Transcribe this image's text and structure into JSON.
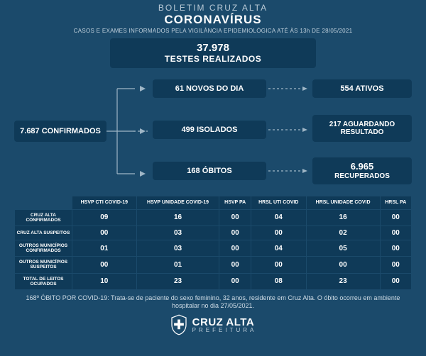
{
  "header": {
    "line1": "BOLETIM CRUZ ALTA",
    "line2": "CORONAVÍRUS",
    "subtitle": "CASOS E EXAMES INFORMADOS PELA VIGILÂNCIA EPIDEMIOLÓGICA ATÉ ÀS 13h DE 28/05/2021"
  },
  "tests": {
    "value": "37.978",
    "label": "TESTES REALIZADOS"
  },
  "flow": {
    "confirmed": "7.687 CONFIRMADOS",
    "new_day": "61 NOVOS DO DIA",
    "isolated": "499 ISOLADOS",
    "deaths": "168 ÓBITOS",
    "active": "554 ATIVOS",
    "awaiting": "217 AGUARDANDO RESULTADO",
    "recovered_num": "6.965",
    "recovered_lbl": "RECUPERADOS"
  },
  "table": {
    "columns": [
      "HSVP CTI COVID-19",
      "HSVP UNIDADE COVID-19",
      "HSVP PA",
      "HRSL UTI COVID",
      "HRSL UNIDADE COVID",
      "HRSL PA"
    ],
    "rows": [
      {
        "head": "CRUZ ALTA CONFIRMADOS",
        "cells": [
          "09",
          "16",
          "00",
          "04",
          "16",
          "00"
        ]
      },
      {
        "head": "CRUZ ALTA SUSPEITOS",
        "cells": [
          "00",
          "03",
          "00",
          "00",
          "02",
          "00"
        ]
      },
      {
        "head": "OUTROS MUNICÍPIOS CONFIRMADOS",
        "cells": [
          "01",
          "03",
          "00",
          "04",
          "05",
          "00"
        ]
      },
      {
        "head": "OUTROS MUNICÍPIOS SUSPEITOS",
        "cells": [
          "00",
          "01",
          "00",
          "00",
          "00",
          "00"
        ]
      },
      {
        "head": "TOTAL DE LEITOS OCUPADOS",
        "cells": [
          "10",
          "23",
          "00",
          "08",
          "23",
          "00"
        ]
      }
    ]
  },
  "footnote": "168º ÓBITO POR COVID-19: Trata-se de paciente do sexo feminino, 32 anos, residente em Cruz Alta. O óbito ocorreu em ambiente hospitalar no dia 27/05/2021.",
  "footer": {
    "city": "CRUZ ALTA",
    "sub": "PREFEITURA"
  },
  "colors": {
    "bg": "#1b4a6b",
    "box": "#0f3a58",
    "text_muted": "#c0d0dc",
    "line": "#9fb6c6"
  }
}
